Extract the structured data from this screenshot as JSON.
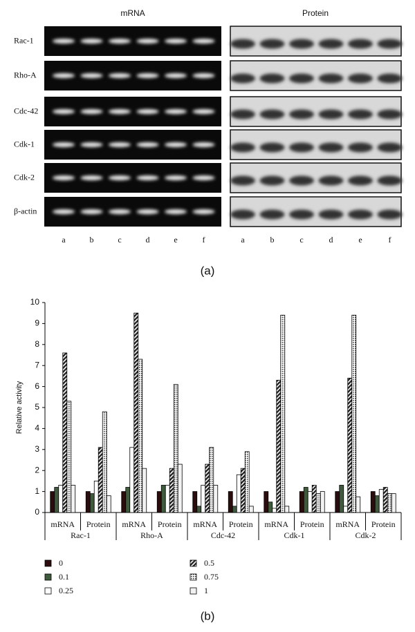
{
  "figure_a": {
    "panels": [
      "mRNA",
      "Protein"
    ],
    "rows": [
      "Rac-1",
      "Rho-A",
      "Cdc-42",
      "Cdk-1",
      "Cdk-2",
      "β-actin"
    ],
    "lanes": [
      "a",
      "b",
      "c",
      "d",
      "e",
      "f"
    ],
    "caption": "(a)"
  },
  "chart_data": {
    "type": "bar",
    "caption": "(b)",
    "y_label": "Relative activity",
    "categories": [
      "mRNA",
      "Protein",
      "mRNA",
      "Protein",
      "mRNA",
      "Protein",
      "mRNA",
      "Protein",
      "mRNA",
      "Protein"
    ],
    "groups": [
      "Rac-1",
      "Rho-A",
      "Cdc-42",
      "Cdk-1",
      "Cdk-2"
    ],
    "series": [
      {
        "name": "0",
        "color": "#2b0d0d",
        "values": [
          1,
          1,
          1,
          1,
          1,
          1,
          1,
          1,
          1,
          1
        ]
      },
      {
        "name": "0.1",
        "color": "#3f5a3c",
        "values": [
          1.2,
          0.9,
          1.2,
          1.3,
          0.3,
          0.3,
          0.5,
          1.2,
          1.3,
          0.8
        ]
      },
      {
        "name": "0.25",
        "color": "#ffffff",
        "values": [
          1.3,
          1.5,
          3.1,
          1.3,
          1.3,
          1.8,
          0.2,
          1.0,
          0.3,
          1.1
        ]
      },
      {
        "name": "0.5",
        "color": "#4a4a4a",
        "values": [
          7.6,
          3.1,
          9.5,
          2.1,
          2.3,
          2.1,
          6.3,
          1.3,
          6.4,
          1.2
        ]
      },
      {
        "name": "0.75",
        "color": "#9a9a9a",
        "values": [
          5.3,
          4.8,
          7.3,
          6.1,
          3.1,
          2.9,
          9.4,
          0.9,
          9.4,
          0.9
        ]
      },
      {
        "name": "1",
        "color": "#f2f2f2",
        "values": [
          1.3,
          0.8,
          2.1,
          2.3,
          1.3,
          0.3,
          0.3,
          1.0,
          0.75,
          0.9
        ]
      }
    ],
    "ylim": [
      0,
      10
    ],
    "yticks": [
      0,
      1,
      2,
      3,
      4,
      5,
      6,
      7,
      8,
      9,
      10
    ]
  }
}
